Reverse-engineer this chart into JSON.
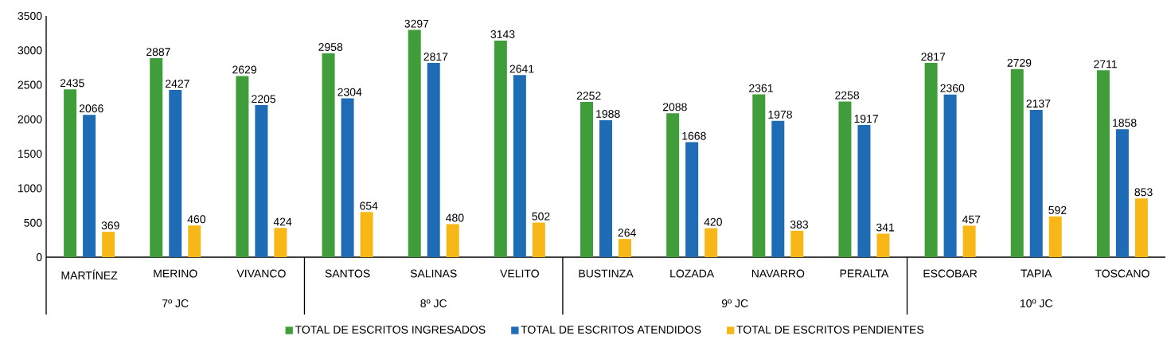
{
  "chart_data": {
    "type": "bar",
    "categories": [
      "MARTÍNEZ",
      "MERINO",
      "VIVANCO",
      "SANTOS",
      "SALINAS",
      "VELITO",
      "BUSTINZA",
      "LOZADA",
      "NAVARRO",
      "PERALTA",
      "ESCOBAR",
      "TAPIA",
      "TOSCANO"
    ],
    "series": [
      {
        "name": "TOTAL DE ESCRITOS INGRESADOS",
        "color": "#3f9e3a",
        "values": [
          2435,
          2887,
          2629,
          2958,
          3297,
          3143,
          2252,
          2088,
          2361,
          2258,
          2817,
          2729,
          2711
        ]
      },
      {
        "name": "TOTAL DE ESCRITOS ATENDIDOS",
        "color": "#1f6cb6",
        "values": [
          2066,
          2427,
          2205,
          2304,
          2817,
          2641,
          1988,
          1668,
          1978,
          1917,
          2360,
          2137,
          1858
        ]
      },
      {
        "name": "TOTAL DE ESCRITOS PENDIENTES",
        "color": "#f7b817",
        "values": [
          369,
          460,
          424,
          654,
          480,
          502,
          264,
          420,
          383,
          341,
          457,
          592,
          853
        ]
      }
    ],
    "ylim": [
      0,
      3500
    ],
    "yticks": [
      0,
      500,
      1000,
      1500,
      2000,
      2500,
      3000,
      3500
    ],
    "data_labels": true,
    "legend": "bottom",
    "annotations": [
      "7º JC",
      "8º JC",
      "9º JC",
      "10º JC"
    ]
  }
}
